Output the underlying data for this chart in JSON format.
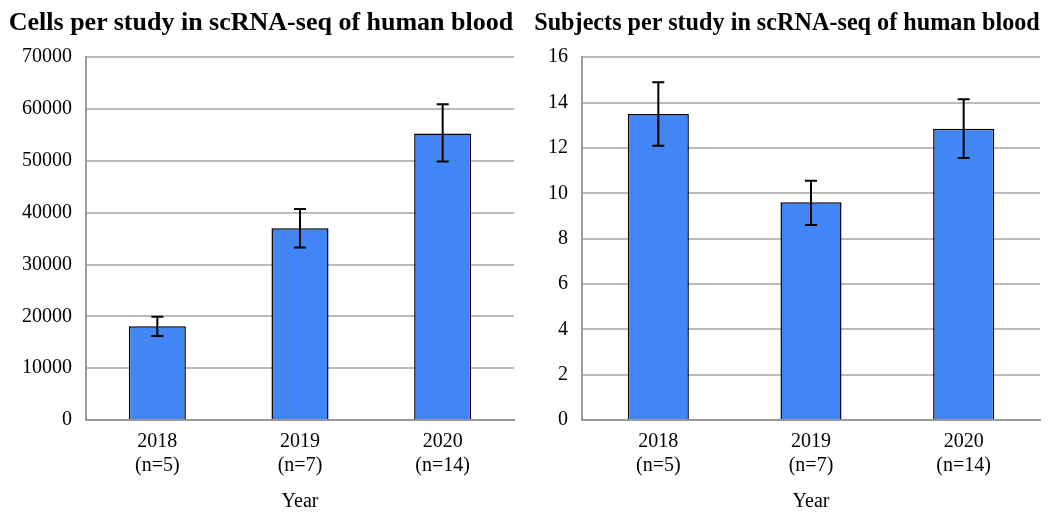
{
  "chart_data": [
    {
      "type": "bar",
      "title": "Cells per study in scRNA-seq of human blood",
      "xlabel": "Year",
      "categories": [
        "2018\n(n=5)",
        "2019\n(n=7)",
        "2020\n(n=14)"
      ],
      "values": [
        18100,
        37000,
        55300
      ],
      "color": "#4285f4",
      "errors": [
        [
          16200,
          19900
        ],
        [
          33300,
          40700
        ],
        [
          49900,
          60900
        ]
      ],
      "ylim": [
        0,
        70000
      ],
      "yticks": [
        0,
        10000,
        20000,
        30000,
        40000,
        50000,
        60000,
        70000
      ],
      "grid": "y",
      "legend": false
    },
    {
      "type": "bar",
      "title": "Subjects per study in scRNA-seq of human blood",
      "xlabel": "Year",
      "categories": [
        "2018\n(n=5)",
        "2019\n(n=7)",
        "2020\n(n=14)"
      ],
      "values": [
        13.5,
        9.6,
        12.85
      ],
      "color": "#4285f4",
      "errors": [
        [
          12.1,
          14.9
        ],
        [
          8.6,
          10.55
        ],
        [
          11.55,
          14.15
        ]
      ],
      "ylim": [
        0,
        16
      ],
      "yticks": [
        0,
        2,
        4,
        6,
        8,
        10,
        12,
        14,
        16
      ],
      "grid": "y",
      "legend": false
    }
  ]
}
